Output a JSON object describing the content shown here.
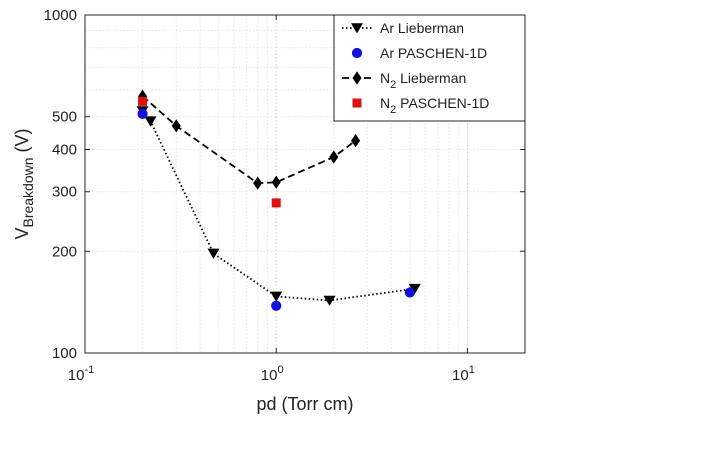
{
  "chart_data": {
    "type": "line",
    "title": "",
    "xlabel": "pd (Torr cm)",
    "ylabel": {
      "main": "V",
      "sub": "Breakdown",
      "unit": " (V)"
    },
    "xscale": "log",
    "yscale": "log",
    "xlim": [
      0.1,
      20
    ],
    "ylim": [
      100,
      1000
    ],
    "grid": true,
    "legend_position": "top-right",
    "x_ticks": [
      {
        "value": 0.1,
        "base": "10",
        "exp": "-1"
      },
      {
        "value": 1,
        "base": "10",
        "exp": "0"
      },
      {
        "value": 10,
        "base": "10",
        "exp": "1"
      }
    ],
    "y_ticks": [
      {
        "value": 100,
        "label": "100"
      },
      {
        "value": 200,
        "label": "200"
      },
      {
        "value": 300,
        "label": "300"
      },
      {
        "value": 400,
        "label": "400"
      },
      {
        "value": 500,
        "label": "500"
      },
      {
        "value": 1000,
        "label": "1000"
      }
    ],
    "series": [
      {
        "name": "Ar Lieberman",
        "name_main": "Ar Lieberman",
        "name_sub": "",
        "color": "#000000",
        "line": "dotted",
        "marker": "triangle-down",
        "points": [
          [
            0.2,
            520
          ],
          [
            0.22,
            485
          ],
          [
            0.47,
            197
          ],
          [
            1.0,
            147
          ],
          [
            1.9,
            143
          ],
          [
            5.3,
            155
          ]
        ]
      },
      {
        "name": "Ar PASCHEN-1D",
        "name_main": "Ar PASCHEN-1D",
        "name_sub": "",
        "color": "#1010e0",
        "line": "none",
        "marker": "circle",
        "points": [
          [
            0.2,
            510
          ],
          [
            1.0,
            138
          ],
          [
            5.0,
            151
          ]
        ]
      },
      {
        "name": "N2 Lieberman",
        "name_main": "N",
        "name_sub": "2",
        "name_rest": " Lieberman",
        "color": "#000000",
        "line": "dashed",
        "marker": "diamond",
        "points": [
          [
            0.2,
            575
          ],
          [
            0.3,
            470
          ],
          [
            0.8,
            318
          ],
          [
            1.0,
            320
          ],
          [
            2.0,
            380
          ],
          [
            2.6,
            425
          ]
        ]
      },
      {
        "name": "N2 PASCHEN-1D",
        "name_main": "N",
        "name_sub": "2",
        "name_rest": " PASCHEN-1D",
        "color": "#e01010",
        "line": "none",
        "marker": "square",
        "points": [
          [
            0.2,
            555
          ],
          [
            1.0,
            278
          ]
        ]
      }
    ]
  }
}
